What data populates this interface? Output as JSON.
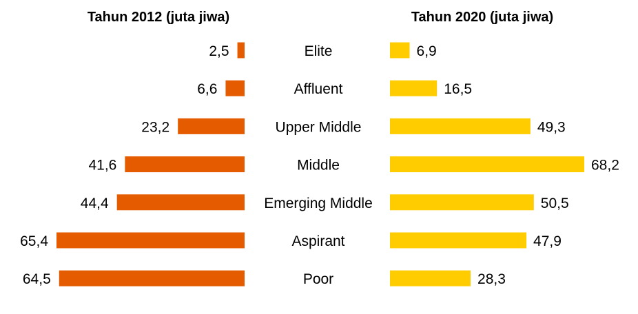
{
  "chart_data": {
    "type": "bar",
    "orientation": "horizontal-butterfly",
    "categories": [
      "Elite",
      "Affluent",
      "Upper Middle",
      "Middle",
      "Emerging Middle",
      "Aspirant",
      "Poor"
    ],
    "series": [
      {
        "name": "Tahun 2012 (juta jiwa)",
        "values": [
          2.5,
          6.6,
          23.2,
          41.6,
          44.4,
          65.4,
          64.5
        ],
        "labels": [
          "2,5",
          "6,6",
          "23,2",
          "41,6",
          "44,4",
          "65,4",
          "64,5"
        ],
        "color": "#E55C00",
        "side": "left"
      },
      {
        "name": "Tahun 2020 (juta jiwa)",
        "values": [
          6.9,
          16.5,
          49.3,
          68.2,
          50.5,
          47.9,
          28.3
        ],
        "labels": [
          "6,9",
          "16,5",
          "49,3",
          "68,2",
          "50,5",
          "47,9",
          "28,3"
        ],
        "color": "#FFCC00",
        "side": "right"
      }
    ],
    "grid": false,
    "legend": "none"
  }
}
